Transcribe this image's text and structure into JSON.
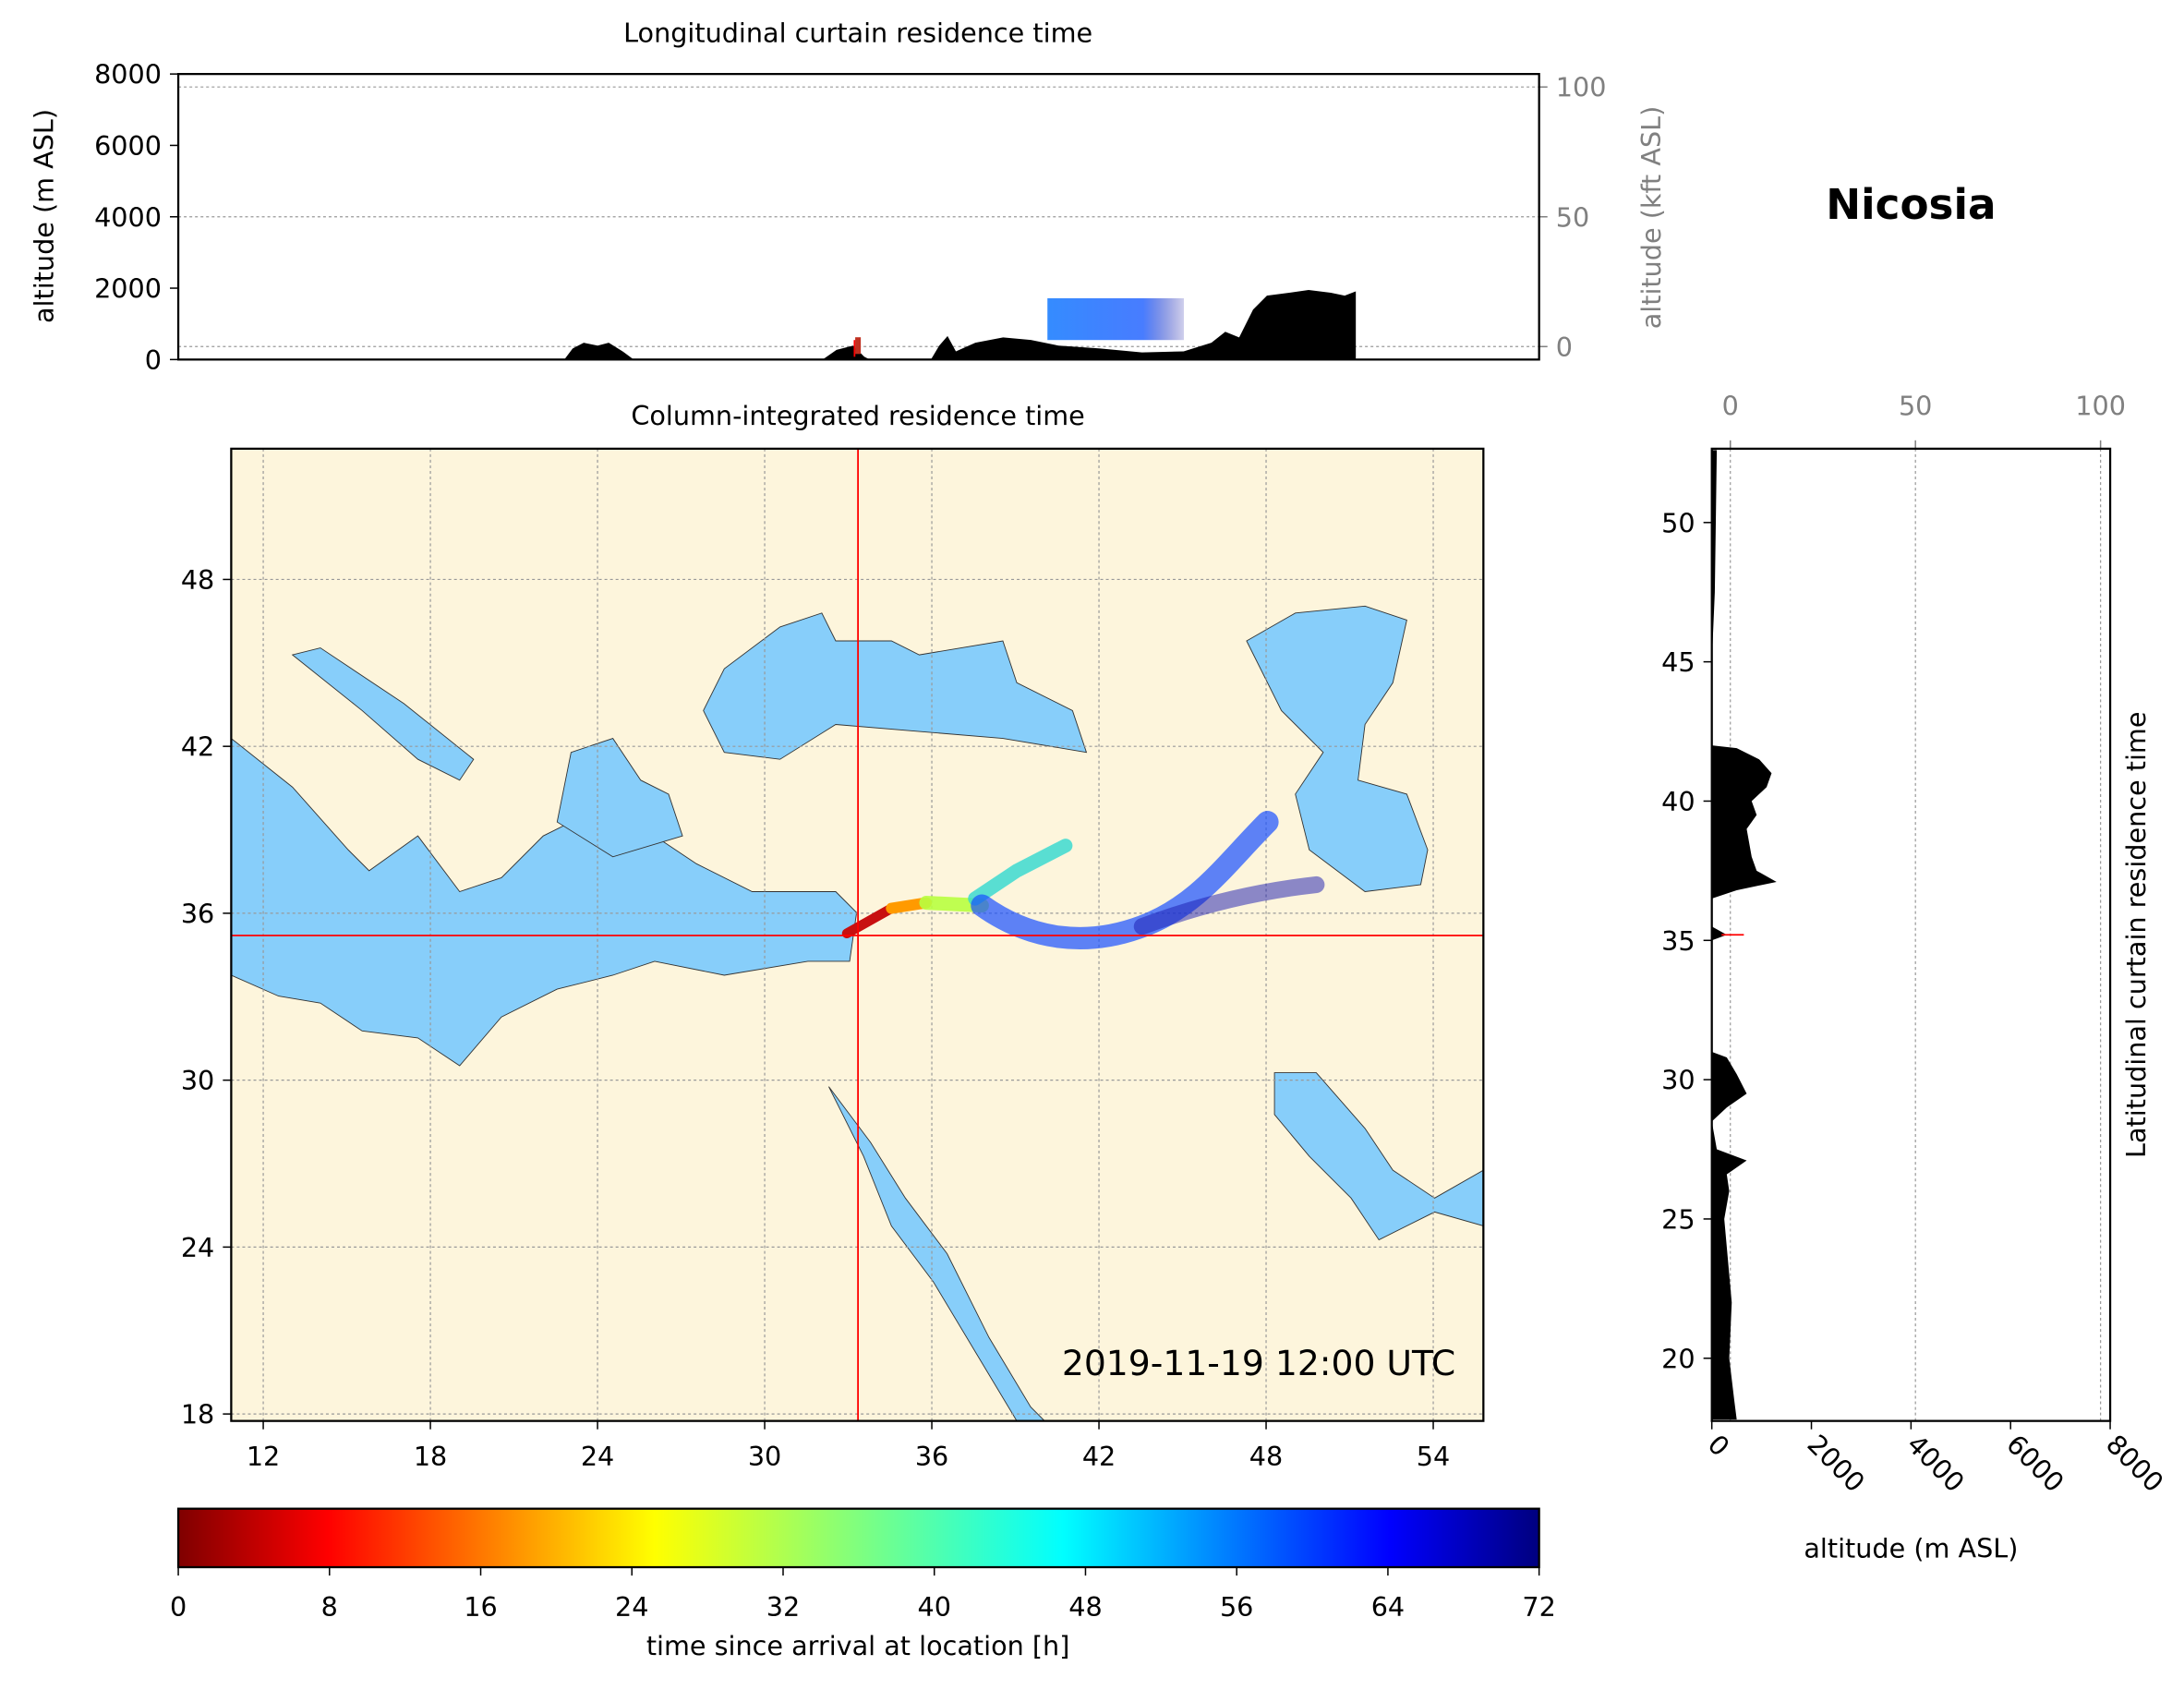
{
  "title": "Nicosia",
  "chart_data": [
    {
      "type": "area",
      "title": "Longitudinal curtain residence time",
      "ylabel": "altitude (m ASL)",
      "y2label": "altitude (kft ASL)",
      "x": [
        22.9,
        23.2,
        23.6,
        24.1,
        24.5,
        25.0,
        25.4,
        32.2,
        32.7,
        33.3,
        33.7,
        33.9,
        36.1,
        36.4,
        36.7,
        37.0,
        37.7,
        38.7,
        39.7,
        40.7,
        42.2,
        43.7,
        45.2,
        46.2,
        46.7,
        47.2,
        47.7,
        48.2,
        49.0,
        49.7,
        50.5,
        51.0,
        51.4
      ],
      "values": [
        0,
        310,
        470,
        390,
        470,
        230,
        0,
        0,
        270,
        390,
        80,
        0,
        0,
        390,
        660,
        230,
        470,
        620,
        550,
        390,
        310,
        200,
        230,
        470,
        780,
        620,
        1400,
        1790,
        1870,
        1950,
        1870,
        1790,
        1910
      ],
      "color": "#000000",
      "xlim": [
        9,
        58
      ],
      "ylim": [
        0,
        8000
      ],
      "yticks": [
        0,
        2000,
        4000,
        6000,
        8000
      ],
      "y2lim": [
        -5,
        105
      ],
      "y2ticks": [
        0,
        50,
        100
      ],
      "grid": true
    },
    {
      "type": "map",
      "title": "Column-integrated residence time",
      "annotation": "2019-11-19 12:00 UTC",
      "xlim": [
        10.85,
        55.8
      ],
      "ylim": [
        17.75,
        52.7
      ],
      "xticks": [
        12,
        18,
        24,
        30,
        36,
        42,
        48,
        54
      ],
      "yticks": [
        18,
        24,
        30,
        36,
        42,
        48
      ],
      "crosshair": {
        "x": 33.35,
        "y": 35.2,
        "color": "#ff0000"
      },
      "grid": true
    },
    {
      "type": "colorbar",
      "label": "time since arrival at location [h]",
      "lim": [
        0,
        72
      ],
      "ticks": [
        0,
        8,
        16,
        24,
        32,
        40,
        48,
        56,
        64,
        72
      ],
      "colormap": "jet_r"
    },
    {
      "type": "area",
      "orientation": "horizontal",
      "ylabel": "Latitudinal curtain residence time",
      "xlabel": "altitude (m ASL)",
      "y": [
        52.6,
        50,
        47.5,
        45,
        42,
        41.9,
        41.5,
        41,
        40.5,
        40,
        39.5,
        39,
        38,
        37.5,
        37.1,
        36.8,
        36.5,
        35.5,
        35.2,
        35.0,
        31,
        30.8,
        30.2,
        29.5,
        29,
        28.5,
        27.5,
        27.1,
        26.6,
        26,
        25,
        24,
        22,
        20,
        18.5,
        17.8
      ],
      "values": [
        100,
        80,
        60,
        0,
        0,
        500,
        950,
        1200,
        1100,
        800,
        900,
        700,
        800,
        900,
        1300,
        500,
        0,
        0,
        300,
        0,
        0,
        300,
        500,
        700,
        300,
        0,
        100,
        700,
        300,
        350,
        250,
        300,
        400,
        350,
        450,
        500
      ],
      "color": "#000000",
      "xlim": [
        0,
        8000
      ],
      "xticks": [
        0,
        2000,
        4000,
        6000,
        8000
      ],
      "x2lim": [
        -5,
        102.6
      ],
      "x2ticks": [
        0,
        50,
        100
      ],
      "ylim": [
        17.75,
        52.65
      ],
      "yticks": [
        20,
        25,
        30,
        35,
        40,
        45,
        50
      ],
      "grid": true
    }
  ]
}
